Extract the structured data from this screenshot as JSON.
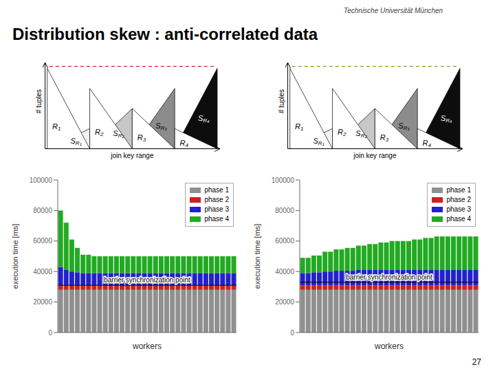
{
  "title": "Distribution skew : anti-correlated data",
  "annotations": [
    "Technische Universität München",
    "27"
  ],
  "chart_data": [
    {
      "type": "diagram",
      "xlabel": "join key range",
      "ylabel": "# tuples",
      "color": "#cc0000",
      "colors": [
        "#f2f2f2",
        "#c7c7c7",
        "#8c8c8c",
        "#0d0d0d"
      ],
      "annotations": [
        "SR1",
        "SR2",
        "SR3",
        "SR4",
        "R1",
        "R2",
        "R3",
        "R4"
      ]
    },
    {
      "type": "diagram",
      "xlabel": "join key range",
      "ylabel": "# tuples",
      "color": "#669900",
      "colors": [
        "#f2f2f2",
        "#c7c7c7",
        "#8c8c8c",
        "#0d0d0d"
      ],
      "annotations": [
        "SR1",
        "SR2",
        "SR3",
        "SR4",
        "R1",
        "R2",
        "R3",
        "R4"
      ]
    },
    {
      "type": "bar",
      "stacked": true,
      "xlabel": "workers",
      "ylabel": "execution time [ms]",
      "categories": [
        null,
        null,
        null,
        null,
        null,
        null,
        null,
        null,
        null,
        null,
        null,
        null,
        null,
        null,
        null,
        null,
        null,
        null,
        null,
        null,
        null,
        null,
        null,
        null,
        null,
        null,
        null,
        null,
        null,
        null,
        null,
        null
      ],
      "tick_labels": "y",
      "ylim": [
        0,
        100000
      ],
      "yticks": [
        0,
        20000,
        40000,
        60000,
        80000,
        100000
      ],
      "grid": false,
      "legend": "upper right",
      "annotations": [
        {
          "text": "barrier synchronization point",
          "y": 31000
        }
      ],
      "series": [
        {
          "name": "phase 1",
          "color": "#909090",
          "values": [
            28000,
            28000,
            28000,
            28000,
            28000,
            28000,
            28000,
            28000,
            28000,
            28000,
            28000,
            28000,
            28000,
            28000,
            28000,
            28000,
            28000,
            28000,
            28000,
            28000,
            28000,
            28000,
            28000,
            28000,
            28000,
            28000,
            28000,
            28000,
            28000,
            28000,
            28000,
            28000
          ]
        },
        {
          "name": "phase 2",
          "color": "#cc2222",
          "values": [
            3000,
            3000,
            3000,
            3000,
            3000,
            3000,
            3000,
            3000,
            3000,
            3000,
            3000,
            3000,
            3000,
            3000,
            3000,
            3000,
            3000,
            3000,
            3000,
            3000,
            3000,
            3000,
            3000,
            3000,
            3000,
            3000,
            3000,
            3000,
            3000,
            3000,
            3000,
            3000
          ]
        },
        {
          "name": "phase 3",
          "color": "#2222cc",
          "values": [
            12000,
            10000,
            9000,
            8500,
            8000,
            8000,
            8000,
            8000,
            8000,
            8000,
            8000,
            8000,
            8000,
            8000,
            8000,
            8000,
            8000,
            8000,
            8000,
            8000,
            8000,
            8000,
            8000,
            8000,
            8000,
            8000,
            8000,
            8000,
            8000,
            8000,
            8000,
            8000
          ]
        },
        {
          "name": "phase 4",
          "color": "#22aa22",
          "values": [
            37000,
            31000,
            21000,
            16000,
            12000,
            12000,
            11000,
            11000,
            11000,
            11000,
            11000,
            11000,
            11000,
            11000,
            11000,
            11000,
            11000,
            11000,
            11000,
            11000,
            11000,
            11000,
            11000,
            11000,
            11000,
            11000,
            11000,
            11000,
            11000,
            11000,
            11000,
            11000
          ]
        }
      ]
    },
    {
      "type": "bar",
      "stacked": true,
      "xlabel": "workers",
      "ylabel": "execution time [ms]",
      "categories": [
        null,
        null,
        null,
        null,
        null,
        null,
        null,
        null,
        null,
        null,
        null,
        null,
        null,
        null,
        null,
        null,
        null,
        null,
        null,
        null,
        null,
        null,
        null,
        null,
        null,
        null,
        null,
        null,
        null,
        null,
        null,
        null
      ],
      "tick_labels": "y",
      "ylim": [
        0,
        100000
      ],
      "yticks": [
        0,
        20000,
        40000,
        60000,
        80000,
        100000
      ],
      "grid": false,
      "legend": "upper right",
      "annotations": [
        {
          "text": "barrier synchronization point",
          "y": 33000
        }
      ],
      "series": [
        {
          "name": "phase 1",
          "color": "#909090",
          "values": [
            28000,
            28000,
            28000,
            28000,
            28000,
            28000,
            28000,
            28000,
            28000,
            28000,
            28000,
            28000,
            28000,
            28000,
            28000,
            28000,
            28000,
            28000,
            28000,
            28000,
            28000,
            28000,
            28000,
            28000,
            28000,
            28000,
            28000,
            28000,
            28000,
            28000,
            28000,
            28000
          ]
        },
        {
          "name": "phase 2",
          "color": "#cc2222",
          "values": [
            3000,
            3000,
            3000,
            3000,
            3000,
            3000,
            3000,
            3000,
            3000,
            3000,
            3000,
            3000,
            3000,
            3000,
            3000,
            3000,
            3000,
            3000,
            3000,
            3000,
            3000,
            3000,
            3000,
            3000,
            3000,
            3000,
            3000,
            3000,
            3000,
            3000,
            3000,
            3000
          ]
        },
        {
          "name": "phase 3",
          "color": "#2222cc",
          "values": [
            8000,
            8000,
            8500,
            8500,
            9000,
            9000,
            9500,
            9500,
            9500,
            9500,
            10000,
            10000,
            10000,
            10000,
            10000,
            10000,
            10000,
            10000,
            10000,
            10000,
            10000,
            10000,
            10000,
            10000,
            10000,
            10000,
            10000,
            10000,
            10000,
            10000,
            10000,
            10000
          ]
        },
        {
          "name": "phase 4",
          "color": "#22aa22",
          "values": [
            10000,
            10000,
            11000,
            11000,
            13000,
            13000,
            14000,
            14000,
            15000,
            15000,
            16000,
            16000,
            17000,
            17000,
            18000,
            18000,
            19000,
            19000,
            19000,
            19000,
            20000,
            20000,
            21000,
            21000,
            22000,
            22000,
            22000,
            22000,
            22000,
            22000,
            22000,
            22000
          ]
        }
      ]
    }
  ]
}
